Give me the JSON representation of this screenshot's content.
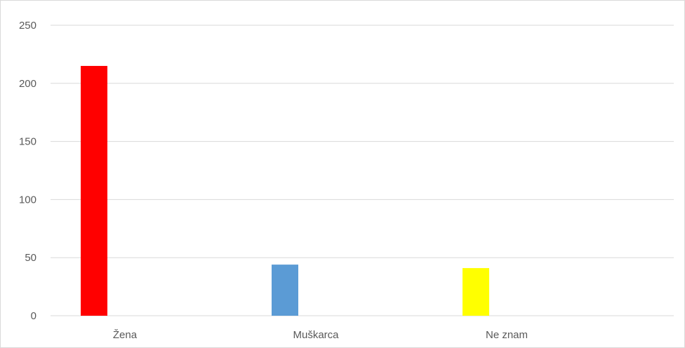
{
  "chart_data": {
    "type": "bar",
    "title": "",
    "xlabel": "",
    "ylabel": "",
    "categories": [
      "Žena",
      "Muškarca",
      "Ne znam"
    ],
    "values": [
      215,
      44,
      41
    ],
    "bar_colors": [
      "#ff0000",
      "#5b9bd5",
      "#ffff00"
    ],
    "ylim": [
      0,
      250
    ],
    "yticks": [
      0,
      50,
      100,
      150,
      200,
      250
    ],
    "grid": true,
    "gridline_color": "#d9d9d9",
    "legend": "none"
  }
}
